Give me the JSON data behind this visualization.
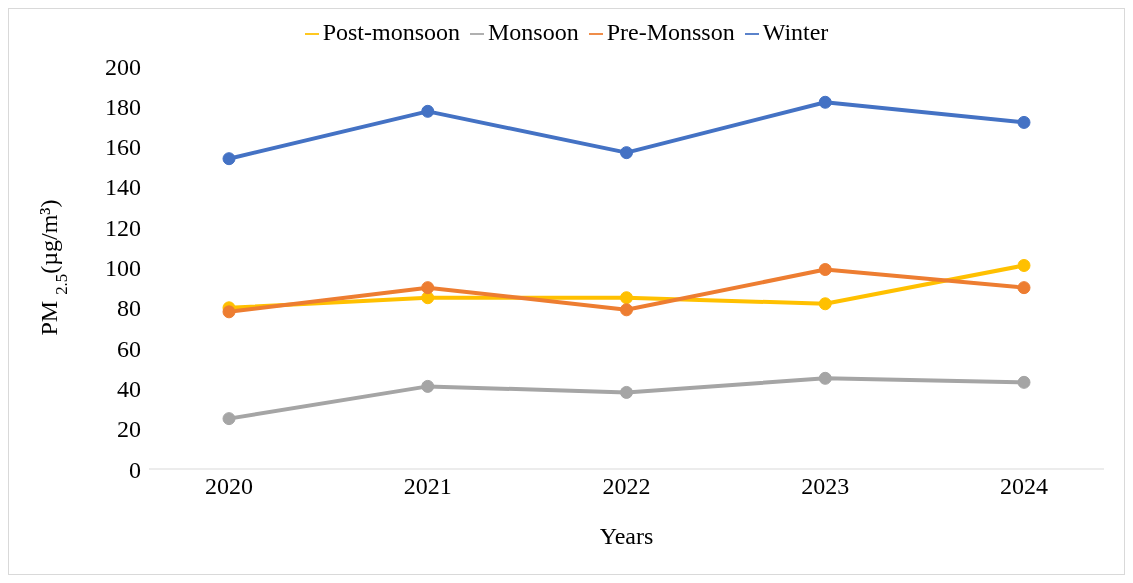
{
  "chart_data": {
    "type": "line",
    "xlabel": "Years",
    "ylabel": "PM $_{2.5}$(µg/m³)",
    "categories": [
      "2020",
      "2021",
      "2022",
      "2023",
      "2024"
    ],
    "series": [
      {
        "name": "Winter",
        "color": "#4472c4",
        "values": [
          154,
          177.5,
          157,
          182,
          172
        ]
      },
      {
        "name": "Pre-Monsson",
        "color": "#ed7d31",
        "values": [
          78,
          90,
          79,
          99,
          90
        ]
      },
      {
        "name": "Monsoon",
        "color": "#a5a5a5",
        "values": [
          25,
          41,
          38,
          45,
          43
        ]
      },
      {
        "name": "Post-monsoon",
        "color": "#ffc000",
        "values": [
          80,
          85,
          85,
          82,
          101
        ]
      }
    ],
    "ylim": [
      0,
      200
    ],
    "yticks": [
      0,
      20,
      40,
      60,
      80,
      100,
      120,
      140,
      160,
      180,
      200
    ],
    "grid": false,
    "legend": "top",
    "marker": "circle",
    "line_style": "solid"
  }
}
